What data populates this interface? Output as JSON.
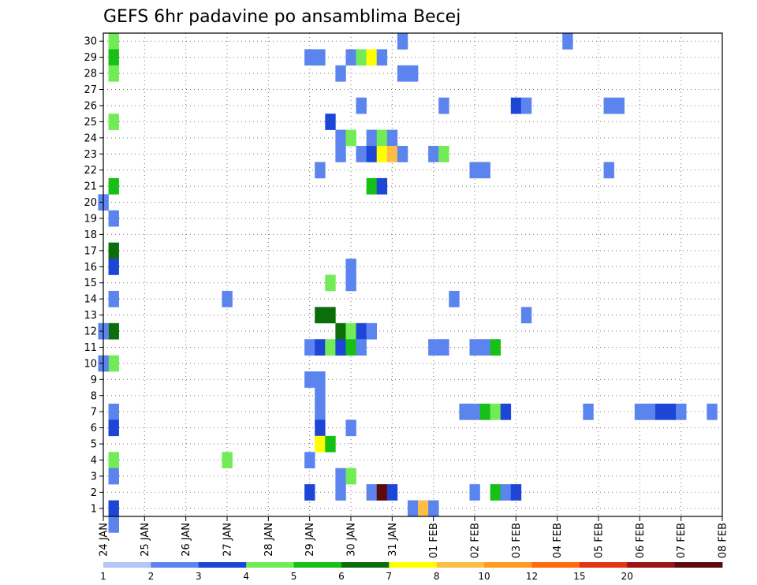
{
  "chart_data": {
    "type": "heatmap",
    "title": "GEFS 6hr padavine po ansamblima Becej",
    "xlabel": "",
    "ylabel": "",
    "x_ticks": [
      "24 JAN",
      "25 JAN",
      "26 JAN",
      "27 JAN",
      "28 JAN",
      "29 JAN",
      "30 JAN",
      "31 JAN",
      "01 FEB",
      "02 FEB",
      "03 FEB",
      "04 FEB",
      "05 FEB",
      "06 FEB",
      "07 FEB",
      "08 FEB"
    ],
    "y_ticks": [
      "1",
      "2",
      "3",
      "4",
      "5",
      "6",
      "7",
      "8",
      "9",
      "10",
      "11",
      "12",
      "13",
      "14",
      "15",
      "16",
      "17",
      "18",
      "19",
      "20",
      "21",
      "22",
      "23",
      "24",
      "25",
      "26",
      "27",
      "28",
      "29",
      "30"
    ],
    "step_hours": 6,
    "x_range": [
      0,
      60
    ],
    "y_range": [
      0.5,
      30.5
    ],
    "grid": true,
    "colorbar": {
      "labels": [
        "1",
        "2",
        "3",
        "4",
        "5",
        "6",
        "7",
        "8",
        "10",
        "12",
        "15",
        "20"
      ],
      "colors": [
        "#b4c6f5",
        "#5c84ee",
        "#1e46d6",
        "#72ec56",
        "#16c016",
        "#0b6e0b",
        "#ffff00",
        "#fdbe46",
        "#ff9b1e",
        "#ff6a0c",
        "#e03412",
        "#9b1414",
        "#5c0a0a"
      ]
    },
    "cells": [
      [
        1,
        30,
        3
      ],
      [
        1,
        29,
        4
      ],
      [
        1,
        28,
        3
      ],
      [
        1,
        25,
        3
      ],
      [
        1,
        21,
        4
      ],
      [
        1,
        19,
        1
      ],
      [
        1,
        17,
        5
      ],
      [
        1,
        16,
        2
      ],
      [
        1,
        14,
        1
      ],
      [
        1,
        12,
        5
      ],
      [
        1,
        10,
        3
      ],
      [
        1,
        7,
        1
      ],
      [
        1,
        6,
        2
      ],
      [
        1,
        4,
        3
      ],
      [
        1,
        3,
        1
      ],
      [
        1,
        1,
        2
      ],
      [
        1,
        0,
        1
      ],
      [
        0,
        20,
        1
      ],
      [
        0,
        12,
        1
      ],
      [
        0,
        10,
        1
      ],
      [
        12,
        4,
        3
      ],
      [
        12,
        14,
        1
      ],
      [
        20,
        29,
        1
      ],
      [
        21,
        29,
        1
      ],
      [
        20,
        11,
        1
      ],
      [
        21,
        11,
        2
      ],
      [
        20,
        9,
        1
      ],
      [
        21,
        9,
        1
      ],
      [
        21,
        8,
        1
      ],
      [
        21,
        7,
        1
      ],
      [
        21,
        6,
        2
      ],
      [
        21,
        5,
        6
      ],
      [
        22,
        5,
        4
      ],
      [
        20,
        4,
        1
      ],
      [
        20,
        2,
        2
      ],
      [
        22,
        25,
        2
      ],
      [
        21,
        22,
        1
      ],
      [
        22,
        15,
        3
      ],
      [
        21,
        13,
        5
      ],
      [
        22,
        13,
        5
      ],
      [
        22,
        11,
        3
      ],
      [
        23,
        11,
        2
      ],
      [
        23,
        12,
        5
      ],
      [
        23,
        28,
        1
      ],
      [
        23,
        24,
        1
      ],
      [
        23,
        23,
        1
      ],
      [
        23,
        3,
        1
      ],
      [
        23,
        2,
        1
      ],
      [
        24,
        29,
        1
      ],
      [
        24,
        24,
        3
      ],
      [
        24,
        16,
        1
      ],
      [
        24,
        15,
        1
      ],
      [
        24,
        12,
        3
      ],
      [
        24,
        11,
        4
      ],
      [
        24,
        6,
        1
      ],
      [
        24,
        3,
        3
      ],
      [
        25,
        29,
        3
      ],
      [
        26,
        29,
        6
      ],
      [
        27,
        29,
        1
      ],
      [
        25,
        26,
        1
      ],
      [
        25,
        23,
        1
      ],
      [
        25,
        12,
        2
      ],
      [
        25,
        11,
        1
      ],
      [
        26,
        24,
        1
      ],
      [
        27,
        24,
        3
      ],
      [
        28,
        24,
        1
      ],
      [
        26,
        23,
        2
      ],
      [
        27,
        23,
        6
      ],
      [
        28,
        23,
        7
      ],
      [
        29,
        23,
        1
      ],
      [
        26,
        21,
        4
      ],
      [
        27,
        21,
        2
      ],
      [
        26,
        12,
        1
      ],
      [
        26,
        2,
        1
      ],
      [
        27,
        2,
        12
      ],
      [
        28,
        2,
        2
      ],
      [
        29,
        30,
        1
      ],
      [
        29,
        28,
        1
      ],
      [
        30,
        28,
        1
      ],
      [
        30,
        1,
        1
      ],
      [
        31,
        1,
        7
      ],
      [
        32,
        1,
        1
      ],
      [
        32,
        23,
        1
      ],
      [
        33,
        23,
        3
      ],
      [
        32,
        11,
        1
      ],
      [
        33,
        11,
        1
      ],
      [
        33,
        26,
        1
      ],
      [
        34,
        14,
        1
      ],
      [
        36,
        22,
        1
      ],
      [
        37,
        22,
        1
      ],
      [
        36,
        11,
        1
      ],
      [
        37,
        11,
        1
      ],
      [
        35,
        7,
        1
      ],
      [
        36,
        7,
        1
      ],
      [
        37,
        7,
        4
      ],
      [
        38,
        7,
        3
      ],
      [
        39,
        7,
        2
      ],
      [
        38,
        11,
        4
      ],
      [
        36,
        2,
        1
      ],
      [
        38,
        2,
        4
      ],
      [
        39,
        2,
        1
      ],
      [
        40,
        2,
        2
      ],
      [
        40,
        26,
        2
      ],
      [
        41,
        26,
        1
      ],
      [
        41,
        13,
        1
      ],
      [
        45,
        30,
        1
      ],
      [
        47,
        7,
        1
      ],
      [
        49,
        26,
        1
      ],
      [
        50,
        26,
        1
      ],
      [
        49,
        22,
        1
      ],
      [
        52,
        7,
        1
      ],
      [
        53,
        7,
        1
      ],
      [
        54,
        7,
        2
      ],
      [
        55,
        7,
        2
      ],
      [
        56,
        7,
        1
      ],
      [
        59,
        7,
        1
      ]
    ]
  }
}
